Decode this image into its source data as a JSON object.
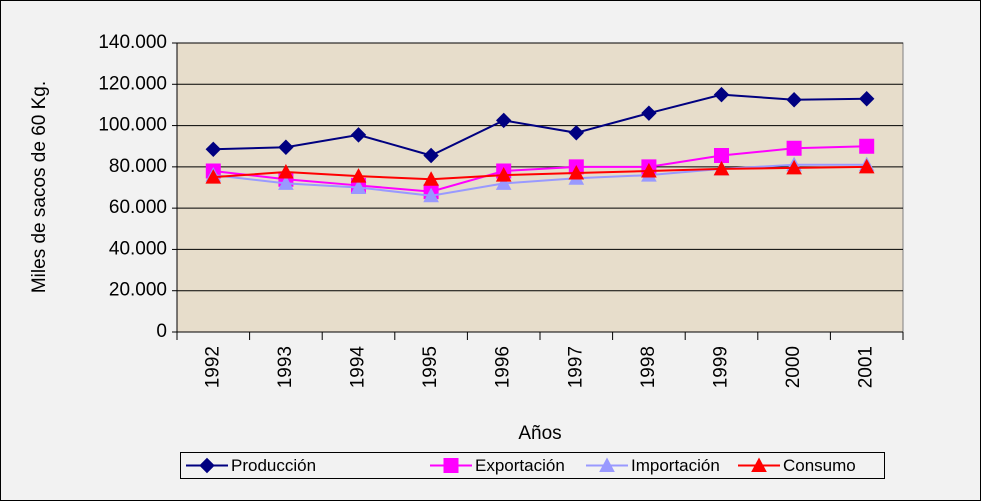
{
  "chart_data": {
    "type": "line",
    "y_label": "Miles de sacos de 60 Kg.",
    "x_label": "Años",
    "categories": [
      "1992",
      "1993",
      "1994",
      "1995",
      "1996",
      "1997",
      "1998",
      "1999",
      "2000",
      "2001"
    ],
    "ylim": [
      0,
      140000
    ],
    "yticks": [
      0,
      {
        "value": 20000,
        "label": "20.000"
      },
      {
        "value": 40000,
        "label": "40.000"
      },
      {
        "value": 60000,
        "label": "60.000"
      },
      {
        "value": 80000,
        "label": "80.000"
      },
      {
        "value": 100000,
        "label": "100.000"
      },
      {
        "value": 120000,
        "label": "120.000"
      },
      {
        "value": 140000,
        "label": "140.000"
      }
    ],
    "grid": true,
    "legend": "bottom",
    "series": [
      {
        "name": "Producción",
        "color": "#000080",
        "marker": "diamond",
        "values": [
          88500,
          89500,
          95500,
          85500,
          102500,
          96500,
          106000,
          115000,
          112500,
          113000
        ]
      },
      {
        "name": "Exportación",
        "color": "#ff00ff",
        "marker": "square",
        "values": [
          78000,
          74000,
          71000,
          68000,
          78000,
          80000,
          80000,
          85500,
          89000,
          90000
        ]
      },
      {
        "name": "Importación",
        "color": "#9999ff",
        "marker": "triangle",
        "values": [
          76000,
          72000,
          70000,
          66000,
          72000,
          74500,
          76000,
          79000,
          81000,
          81000
        ]
      },
      {
        "name": "Consumo",
        "color": "#ff0000",
        "marker": "triangle",
        "values": [
          75000,
          77500,
          75500,
          74000,
          76000,
          77000,
          78000,
          79000,
          79500,
          80000
        ]
      }
    ]
  }
}
